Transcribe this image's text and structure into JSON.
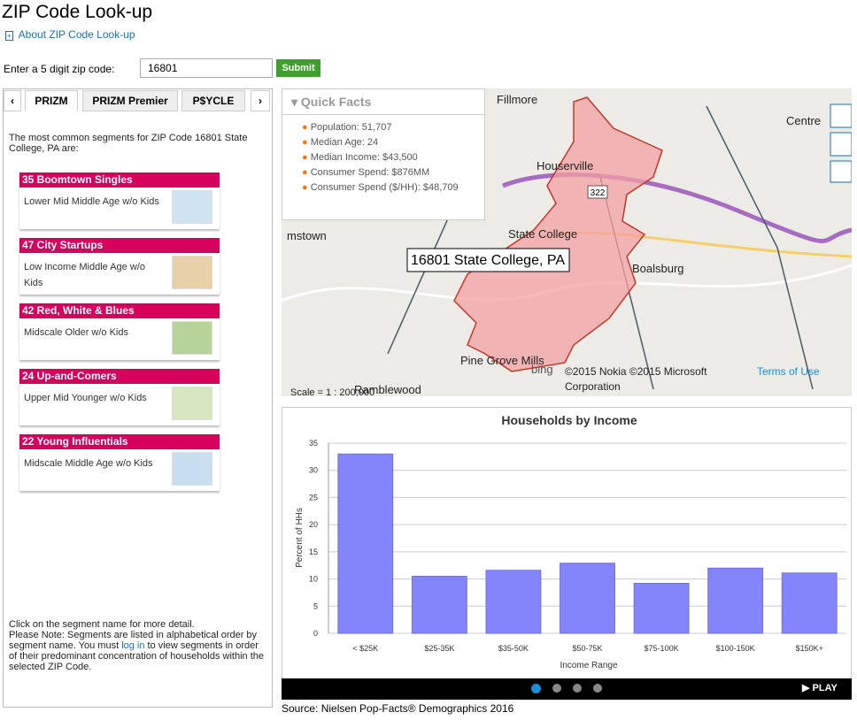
{
  "header": {
    "title": "ZIP Code Look-up",
    "about": "About ZIP Code Look-up"
  },
  "form": {
    "label": "Enter a 5 digit zip code:",
    "value": "16801",
    "button": "Submit"
  },
  "tabs": [
    "PRIZM",
    "PRIZM Premier",
    "P$YCLE"
  ],
  "intro": "The most common segments for ZIP Code 16801 State College, PA are:",
  "segments": [
    {
      "name": "35 Boomtown Singles",
      "description": "Lower Mid Middle Age w/o Kids"
    },
    {
      "name": "47 City Startups",
      "description": "Low Income Middle Age w/o Kids"
    },
    {
      "name": "42 Red, White & Blues",
      "description": "Midscale Older w/o Kids"
    },
    {
      "name": "24 Up-and-Comers",
      "description": "Upper Mid Younger w/o Kids"
    },
    {
      "name": "22 Young Influentials",
      "description": "Midscale Middle Age w/o Kids"
    }
  ],
  "note": {
    "line1": "Click on the segment name for more detail.",
    "before": "Please Note: Segments are listed in alphabetical order by segment name. You must ",
    "link": "log in",
    "after": " to view segments in order of their predominant concentration of households within the selected ZIP Code."
  },
  "quick_facts": {
    "title": "Quick Facts",
    "items": [
      "Population: 51,707",
      "Median Age: 24",
      "Median Income: $43,500",
      "Consumer Spend: $876MM",
      "Consumer Spend ($/HH): $48,709"
    ]
  },
  "map": {
    "label": "16801 State College, PA",
    "places": [
      "Fillmore",
      "Centre",
      "Houserville",
      "State College",
      "mstown",
      "Boalsburg",
      "Pine Grove Mills",
      "Ramblewood"
    ],
    "road": "322",
    "credit": "©2015 Nokia ©2015 Microsoft Corporation",
    "terms": "Terms of Use",
    "scale": "Scale = 1 : 200,000",
    "brand": "bing"
  },
  "chart_data": {
    "type": "bar",
    "title": "Households by Income",
    "x_label": "Income Range",
    "y_label": "Percent of HHs",
    "categories": [
      "< $25K",
      "$25-35K",
      "$35-50K",
      "$50-75K",
      "$75-100K",
      "$100-150K",
      "$150K+"
    ],
    "values": [
      33,
      10.5,
      11.6,
      12.9,
      9.2,
      12,
      11.1
    ],
    "color": "#8585fb",
    "ylim": [
      0,
      35
    ],
    "yticks": [
      0,
      5,
      10,
      15,
      20,
      25,
      30,
      35
    ],
    "grid": true
  },
  "player": {
    "play": "PLAY"
  },
  "source": "Source: Nielsen Pop-Facts® Demographics 2016"
}
